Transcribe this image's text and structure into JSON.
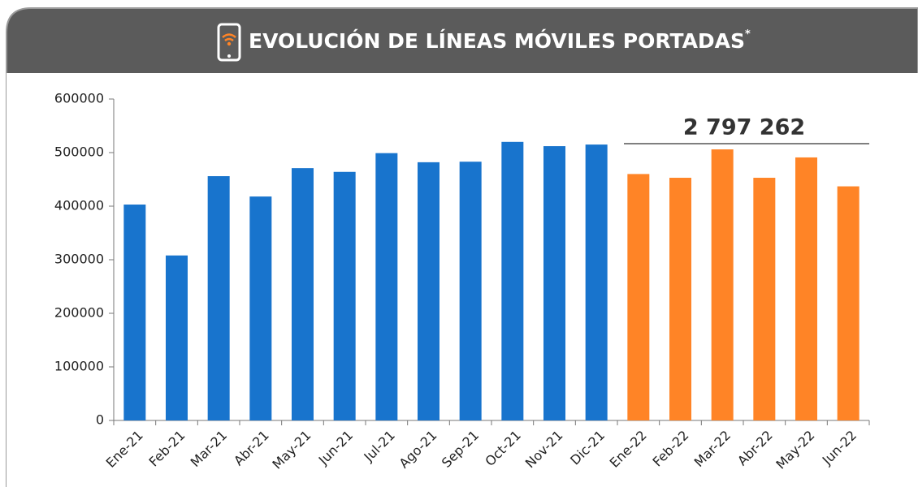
{
  "chart_data": {
    "type": "bar",
    "title": "EVOLUCIÓN DE LÍNEAS MÓVILES PORTADAS",
    "title_mark": "*",
    "categories": [
      "Ene-21",
      "Feb-21",
      "Mar-21",
      "Abr-21",
      "May-21",
      "Jun-21",
      "Jul-21",
      "Ago-21",
      "Sep-21",
      "Oct-21",
      "Nov-21",
      "Dic-21",
      "Ene-22",
      "Feb-22",
      "Mar-22",
      "Abr-22",
      "May-22",
      "Jun-22"
    ],
    "values": [
      403000,
      308000,
      456000,
      418000,
      471000,
      464000,
      499000,
      482000,
      483000,
      520000,
      512000,
      515000,
      460000,
      453000,
      506000,
      453000,
      491000,
      437000
    ],
    "colors": [
      "#1874cd",
      "#1874cd",
      "#1874cd",
      "#1874cd",
      "#1874cd",
      "#1874cd",
      "#1874cd",
      "#1874cd",
      "#1874cd",
      "#1874cd",
      "#1874cd",
      "#1874cd",
      "#ff8426",
      "#ff8426",
      "#ff8426",
      "#ff8426",
      "#ff8426",
      "#ff8426"
    ],
    "annotation": "2 797 262",
    "ylim": [
      0,
      600000
    ],
    "yticks": [
      0,
      100000,
      200000,
      300000,
      400000,
      500000,
      600000
    ],
    "grid": false
  }
}
